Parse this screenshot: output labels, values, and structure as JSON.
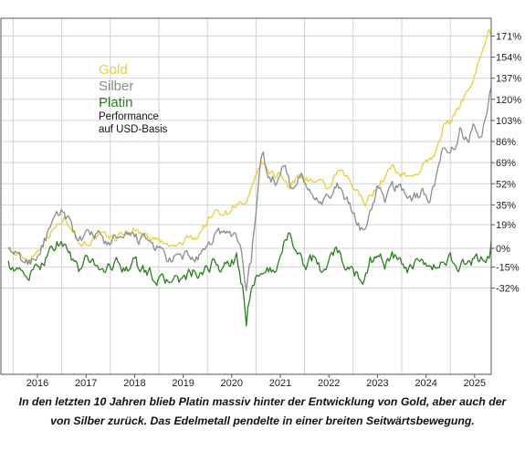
{
  "chart_data": {
    "type": "line",
    "title": "",
    "xlabel": "",
    "ylabel": "",
    "note": "Performance auf USD-Basis",
    "x_ticks": [
      "2016",
      "2017",
      "2018",
      "2019",
      "2020",
      "2021",
      "2022",
      "2023",
      "2024",
      "2025"
    ],
    "y_ticks": [
      "171%",
      "154%",
      "137%",
      "120%",
      "103%",
      "86%",
      "69%",
      "52%",
      "35%",
      "19%",
      "0%",
      "-15%",
      "-32%"
    ],
    "y_tick_values": [
      171,
      154,
      137,
      120,
      103,
      86,
      69,
      52,
      35,
      19,
      0,
      -15,
      -32
    ],
    "grid": true,
    "legend_position": "top-left",
    "series": [
      {
        "name": "Gold",
        "color": "#e6cf3c",
        "points": [
          [
            2015.4,
            0
          ],
          [
            2015.6,
            -6
          ],
          [
            2015.8,
            -9
          ],
          [
            2016.0,
            -2
          ],
          [
            2016.2,
            10
          ],
          [
            2016.4,
            18
          ],
          [
            2016.55,
            24
          ],
          [
            2016.7,
            19
          ],
          [
            2016.85,
            5
          ],
          [
            2017.0,
            4
          ],
          [
            2017.3,
            10
          ],
          [
            2017.6,
            8
          ],
          [
            2017.8,
            13
          ],
          [
            2018.0,
            15
          ],
          [
            2018.15,
            12
          ],
          [
            2018.3,
            10
          ],
          [
            2018.5,
            6
          ],
          [
            2018.7,
            1
          ],
          [
            2018.9,
            2
          ],
          [
            2019.1,
            8
          ],
          [
            2019.3,
            10
          ],
          [
            2019.5,
            22
          ],
          [
            2019.7,
            30
          ],
          [
            2019.9,
            29
          ],
          [
            2020.05,
            35
          ],
          [
            2020.2,
            36
          ],
          [
            2020.3,
            34
          ],
          [
            2020.45,
            50
          ],
          [
            2020.6,
            70
          ],
          [
            2020.75,
            62
          ],
          [
            2020.9,
            58
          ],
          [
            2021.0,
            62
          ],
          [
            2021.2,
            48
          ],
          [
            2021.4,
            60
          ],
          [
            2021.6,
            55
          ],
          [
            2021.8,
            52
          ],
          [
            2022.0,
            48
          ],
          [
            2022.2,
            62
          ],
          [
            2022.4,
            55
          ],
          [
            2022.6,
            44
          ],
          [
            2022.75,
            38
          ],
          [
            2022.9,
            45
          ],
          [
            2023.1,
            55
          ],
          [
            2023.3,
            65
          ],
          [
            2023.5,
            60
          ],
          [
            2023.7,
            58
          ],
          [
            2023.85,
            62
          ],
          [
            2024.0,
            68
          ],
          [
            2024.2,
            78
          ],
          [
            2024.35,
            98
          ],
          [
            2024.5,
            102
          ],
          [
            2024.7,
            115
          ],
          [
            2024.85,
            128
          ],
          [
            2025.0,
            140
          ],
          [
            2025.15,
            160
          ],
          [
            2025.3,
            175
          ],
          [
            2025.35,
            172
          ]
        ]
      },
      {
        "name": "Silber",
        "color": "#8c8c8c",
        "points": [
          [
            2015.4,
            0
          ],
          [
            2015.6,
            -8
          ],
          [
            2015.8,
            -12
          ],
          [
            2016.0,
            -5
          ],
          [
            2016.2,
            10
          ],
          [
            2016.4,
            24
          ],
          [
            2016.55,
            30
          ],
          [
            2016.7,
            20
          ],
          [
            2016.85,
            5
          ],
          [
            2017.0,
            8
          ],
          [
            2017.2,
            12
          ],
          [
            2017.4,
            4
          ],
          [
            2017.6,
            8
          ],
          [
            2017.8,
            6
          ],
          [
            2018.0,
            10
          ],
          [
            2018.2,
            6
          ],
          [
            2018.4,
            2
          ],
          [
            2018.6,
            -5
          ],
          [
            2018.75,
            -12
          ],
          [
            2018.9,
            -8
          ],
          [
            2019.1,
            -5
          ],
          [
            2019.3,
            -10
          ],
          [
            2019.5,
            -2
          ],
          [
            2019.7,
            15
          ],
          [
            2019.9,
            10
          ],
          [
            2020.05,
            12
          ],
          [
            2020.2,
            0
          ],
          [
            2020.3,
            -32
          ],
          [
            2020.4,
            -10
          ],
          [
            2020.5,
            30
          ],
          [
            2020.6,
            70
          ],
          [
            2020.65,
            74
          ],
          [
            2020.75,
            58
          ],
          [
            2020.9,
            55
          ],
          [
            2021.0,
            62
          ],
          [
            2021.1,
            68
          ],
          [
            2021.2,
            50
          ],
          [
            2021.4,
            62
          ],
          [
            2021.6,
            45
          ],
          [
            2021.8,
            42
          ],
          [
            2022.0,
            40
          ],
          [
            2022.2,
            50
          ],
          [
            2022.4,
            35
          ],
          [
            2022.55,
            22
          ],
          [
            2022.7,
            15
          ],
          [
            2022.85,
            28
          ],
          [
            2023.0,
            48
          ],
          [
            2023.15,
            38
          ],
          [
            2023.3,
            52
          ],
          [
            2023.5,
            48
          ],
          [
            2023.7,
            40
          ],
          [
            2023.9,
            45
          ],
          [
            2024.05,
            40
          ],
          [
            2024.2,
            55
          ],
          [
            2024.35,
            80
          ],
          [
            2024.5,
            72
          ],
          [
            2024.7,
            95
          ],
          [
            2024.85,
            85
          ],
          [
            2025.0,
            100
          ],
          [
            2025.15,
            92
          ],
          [
            2025.25,
            108
          ],
          [
            2025.35,
            130
          ]
        ]
      },
      {
        "name": "Platin",
        "color": "#2a7e1e",
        "points": [
          [
            2015.4,
            -10
          ],
          [
            2015.6,
            -20
          ],
          [
            2015.8,
            -22
          ],
          [
            2016.0,
            -18
          ],
          [
            2016.2,
            -5
          ],
          [
            2016.4,
            5
          ],
          [
            2016.55,
            3
          ],
          [
            2016.7,
            -8
          ],
          [
            2016.85,
            -18
          ],
          [
            2017.0,
            -10
          ],
          [
            2017.2,
            -12
          ],
          [
            2017.4,
            -18
          ],
          [
            2017.6,
            -12
          ],
          [
            2017.8,
            -15
          ],
          [
            2018.0,
            -12
          ],
          [
            2018.2,
            -18
          ],
          [
            2018.4,
            -22
          ],
          [
            2018.6,
            -28
          ],
          [
            2018.8,
            -24
          ],
          [
            2019.0,
            -26
          ],
          [
            2019.2,
            -20
          ],
          [
            2019.4,
            -24
          ],
          [
            2019.6,
            -12
          ],
          [
            2019.8,
            -16
          ],
          [
            2020.0,
            -12
          ],
          [
            2020.1,
            -8
          ],
          [
            2020.25,
            -38
          ],
          [
            2020.3,
            -58
          ],
          [
            2020.4,
            -30
          ],
          [
            2020.55,
            -20
          ],
          [
            2020.7,
            -18
          ],
          [
            2020.85,
            -20
          ],
          [
            2020.95,
            -12
          ],
          [
            2021.1,
            5
          ],
          [
            2021.2,
            15
          ],
          [
            2021.35,
            -5
          ],
          [
            2021.5,
            -15
          ],
          [
            2021.7,
            -8
          ],
          [
            2021.85,
            -18
          ],
          [
            2022.0,
            -10
          ],
          [
            2022.15,
            0
          ],
          [
            2022.3,
            -12
          ],
          [
            2022.5,
            -20
          ],
          [
            2022.7,
            -25
          ],
          [
            2022.85,
            -10
          ],
          [
            2023.0,
            -5
          ],
          [
            2023.15,
            -12
          ],
          [
            2023.3,
            -5
          ],
          [
            2023.5,
            -15
          ],
          [
            2023.7,
            -18
          ],
          [
            2023.9,
            -10
          ],
          [
            2024.1,
            -20
          ],
          [
            2024.3,
            -12
          ],
          [
            2024.5,
            -8
          ],
          [
            2024.7,
            -15
          ],
          [
            2024.9,
            -12
          ],
          [
            2025.1,
            -10
          ],
          [
            2025.2,
            -8
          ],
          [
            2025.3,
            -5
          ],
          [
            2025.35,
            10
          ]
        ]
      }
    ]
  },
  "legend": {
    "items": [
      {
        "label": "Gold",
        "color": "#e6cf3c"
      },
      {
        "label": "Silber",
        "color": "#8c8c8c"
      },
      {
        "label": "Platin",
        "color": "#2a7e1e"
      }
    ],
    "note_line1": "Performance",
    "note_line2": "auf USD-Basis"
  },
  "caption": {
    "line1": "In den letzten 10 Jahren blieb Platin massiv hinter der Entwicklung von Gold, aber auch der",
    "line2": "von Silber zurück. Das Edelmetall pendelte in einer breiten Seitwärtsbewegung."
  }
}
